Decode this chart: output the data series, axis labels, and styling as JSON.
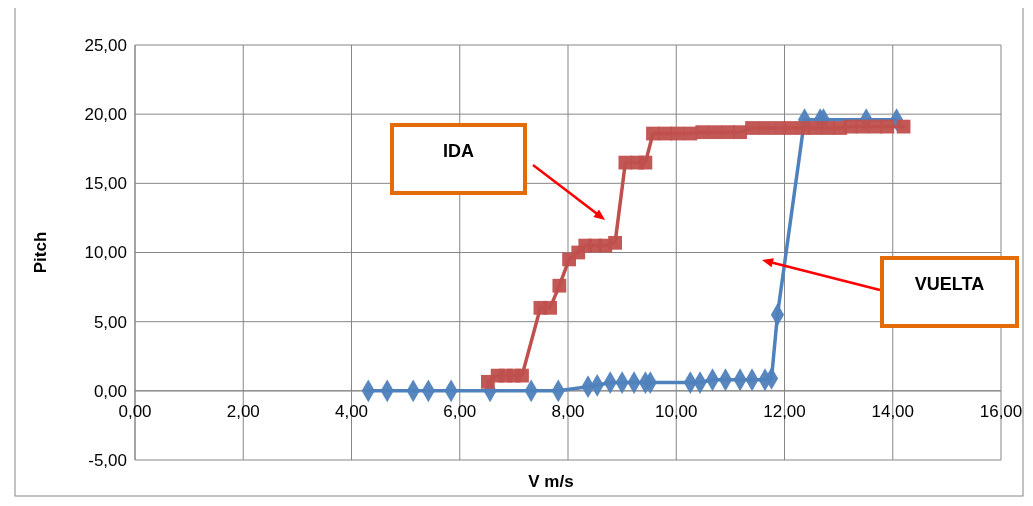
{
  "chart_data": {
    "type": "line",
    "xlabel": "V m/s",
    "ylabel": "Pitch",
    "xlim": [
      0,
      16
    ],
    "ylim": [
      -5,
      25
    ],
    "xticks": [
      {
        "value": 0,
        "label": "0,00"
      },
      {
        "value": 2,
        "label": "2,00"
      },
      {
        "value": 4,
        "label": "4,00"
      },
      {
        "value": 6,
        "label": "6,00"
      },
      {
        "value": 8,
        "label": "8,00"
      },
      {
        "value": 10,
        "label": "10,00"
      },
      {
        "value": 12,
        "label": "12,00"
      },
      {
        "value": 14,
        "label": "14,00"
      },
      {
        "value": 16,
        "label": "16,00"
      }
    ],
    "yticks": [
      {
        "value": -5,
        "label": "-5,00"
      },
      {
        "value": 0,
        "label": "0,00"
      },
      {
        "value": 5,
        "label": "5,00"
      },
      {
        "value": 10,
        "label": "10,00"
      },
      {
        "value": 15,
        "label": "15,00"
      },
      {
        "value": 20,
        "label": "20,00"
      },
      {
        "value": 25,
        "label": "25,00"
      }
    ],
    "grid": true,
    "line_style": "solid",
    "series": [
      {
        "color": "#4f81bd",
        "marker": "diamond",
        "x": [
          4.31,
          4.66,
          5.14,
          5.42,
          5.84,
          6.56,
          7.32,
          7.82,
          8.37,
          8.54,
          8.78,
          9.0,
          9.22,
          9.43,
          9.52,
          10.26,
          10.44,
          10.67,
          10.91,
          11.18,
          11.4,
          11.64,
          11.76,
          11.87,
          12.37,
          12.66,
          12.72,
          13.51,
          14.07
        ],
        "values": [
          0,
          0,
          0,
          0,
          0,
          0,
          0,
          0,
          0.3,
          0.4,
          0.6,
          0.6,
          0.6,
          0.6,
          0.6,
          0.6,
          0.6,
          0.8,
          0.8,
          0.8,
          0.8,
          0.8,
          0.9,
          5.5,
          19.6,
          19.6,
          19.6,
          19.6,
          19.6
        ]
      },
      {
        "color": "#c0504d",
        "marker": "square",
        "x": [
          6.52,
          6.7,
          6.85,
          7.0,
          7.15,
          7.49,
          7.67,
          7.84,
          8.02,
          8.19,
          8.32,
          8.5,
          8.69,
          8.87,
          9.06,
          9.28,
          9.43,
          9.57,
          9.8,
          10.02,
          10.26,
          10.48,
          10.72,
          10.96,
          11.18,
          11.4,
          11.64,
          11.89,
          12.11,
          12.35,
          12.57,
          12.81,
          13.03,
          13.22,
          13.44,
          13.68,
          13.9,
          14.2
        ],
        "values": [
          0.65,
          1.1,
          1.1,
          1.1,
          1.1,
          6.0,
          6.0,
          7.6,
          9.5,
          10.0,
          10.5,
          10.5,
          10.5,
          10.7,
          16.5,
          16.5,
          16.5,
          18.6,
          18.6,
          18.6,
          18.6,
          18.7,
          18.7,
          18.7,
          18.7,
          19.0,
          19.0,
          19.0,
          19.0,
          19.0,
          19.0,
          19.0,
          19.0,
          19.1,
          19.1,
          19.1,
          19.1,
          19.1
        ]
      }
    ],
    "annotations": [
      "IDA",
      "VUELTA"
    ]
  }
}
